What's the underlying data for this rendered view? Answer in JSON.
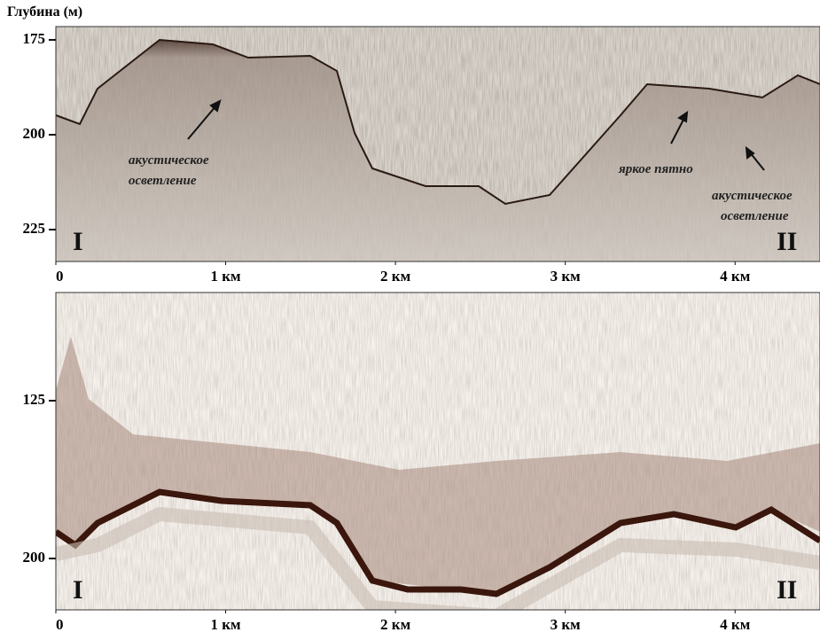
{
  "y_label": "Глубина (м)",
  "panels": [
    {
      "ylim": [
        171.5,
        233.4
      ],
      "yticks": [
        175,
        200,
        225
      ],
      "xlim": [
        0,
        4.5
      ],
      "xticks": [
        {
          "value": 0,
          "label": "0"
        },
        {
          "value": 1,
          "label": "1 км"
        },
        {
          "value": 2,
          "label": "2 км"
        },
        {
          "value": 3,
          "label": "3 км"
        },
        {
          "value": 4,
          "label": "4 км"
        }
      ],
      "roman_left": "I",
      "roman_right": "II",
      "annotations": [
        "акустическое",
        "осветление",
        "яркое пятно",
        "акустическое",
        "осветление"
      ]
    },
    {
      "ylim": [
        73.6,
        224.4
      ],
      "yticks": [
        125,
        200
      ],
      "xlim": [
        0,
        4.5
      ],
      "xticks": [
        {
          "value": 0,
          "label": "0"
        },
        {
          "value": 1,
          "label": "1 км"
        },
        {
          "value": 2,
          "label": "2 км"
        },
        {
          "value": 3,
          "label": "3 км"
        },
        {
          "value": 4,
          "label": "4 км"
        }
      ],
      "roman_left": "I",
      "roman_right": "II"
    }
  ]
}
